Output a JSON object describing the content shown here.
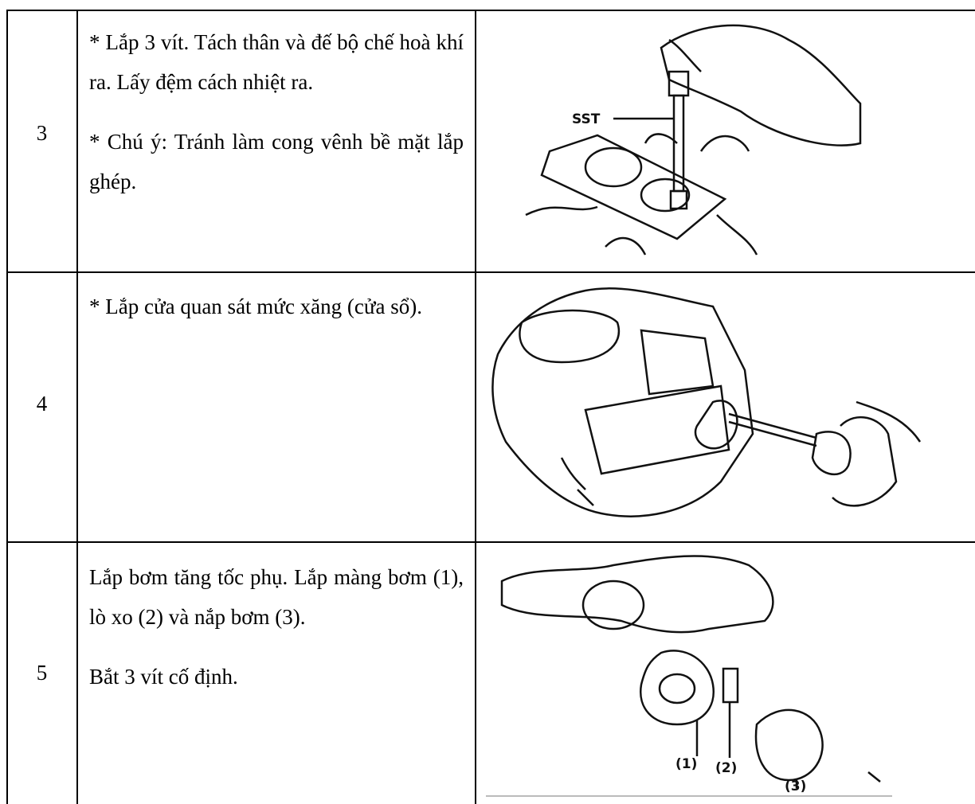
{
  "table": {
    "rows": [
      {
        "step": "3",
        "paragraphs": [
          "* Lắp 3 vít. Tách thân và đế bộ chế hoà khí ra. Lấy đệm cách nhiệt ra.",
          "* Chú ý: Tránh làm cong vênh bề mặt lắp ghép."
        ],
        "figure_labels": [
          "SST"
        ]
      },
      {
        "step": "4",
        "paragraphs": [
          "* Lắp cửa quan sát mức xăng (cửa sổ)."
        ],
        "figure_labels": []
      },
      {
        "step": "5",
        "paragraphs": [
          "Lắp bơm tăng tốc phụ. Lắp màng bơm (1), lò xo (2) và nắp bơm (3).",
          "Bắt 3 vít cố định."
        ],
        "figure_labels": [
          "(1)",
          "(2)",
          "(3)"
        ]
      }
    ]
  }
}
